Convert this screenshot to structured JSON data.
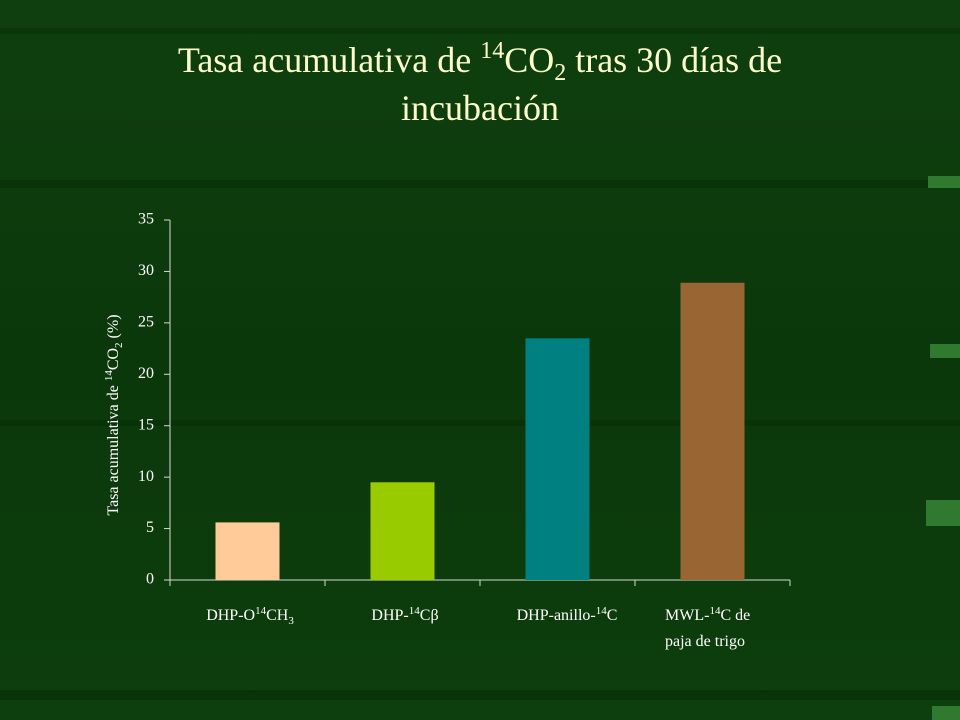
{
  "chart_data": {
    "type": "bar",
    "title": [
      "Tasa acumulativa de ",
      "14",
      "CO",
      "2",
      " tras 30 días de",
      "incubación"
    ],
    "y_label": [
      "Tasa acumulativa de ",
      "14",
      "CO",
      "2",
      " (%)"
    ],
    "categories": [
      [
        "DHP-O",
        "14",
        "CH",
        "3"
      ],
      [
        "DHP-",
        "14",
        "Cβ"
      ],
      [
        "DHP-anillo-",
        "14",
        "C"
      ],
      [
        "MWL-",
        "14",
        "C de",
        "paja de trigo"
      ]
    ],
    "values": [
      5.6,
      9.5,
      23.5,
      28.9
    ],
    "colors": [
      "#ffcc99",
      "#99cc00",
      "#008080",
      "#996633"
    ],
    "ylim": [
      0,
      35
    ],
    "yticks": [
      0,
      5,
      10,
      15,
      20,
      25,
      30,
      35
    ],
    "grid": false
  }
}
